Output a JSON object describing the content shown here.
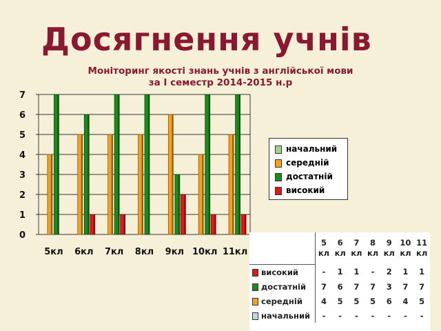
{
  "slide": {
    "title": "Досягнення учнів"
  },
  "chart_data": {
    "type": "bar",
    "title_lines": [
      "Моніторинг якості знань учнів з англійської мови",
      "за І семестр 2014-2015 н.р"
    ],
    "categories": [
      "5кл",
      "6кл",
      "7кл",
      "8кл",
      "9кл",
      "10кл",
      "11кл"
    ],
    "ylim": [
      0,
      7
    ],
    "yticks": [
      0,
      1,
      2,
      3,
      4,
      5,
      6,
      7
    ],
    "grid": true,
    "legend_position": "right",
    "series": [
      {
        "name": "начальний",
        "color": "#9fd48a",
        "values": [
          0,
          0,
          0,
          0,
          0,
          0,
          0
        ]
      },
      {
        "name": "середній",
        "color": "#f5a01e",
        "values": [
          4,
          5,
          5,
          5,
          6,
          4,
          5
        ]
      },
      {
        "name": "достатній",
        "color": "#1e8a1e",
        "values": [
          7,
          6,
          7,
          7,
          3,
          7,
          7
        ]
      },
      {
        "name": "високий",
        "color": "#e01818",
        "values": [
          0,
          1,
          1,
          0,
          2,
          1,
          1
        ]
      }
    ]
  },
  "data_table": {
    "columns": [
      [
        "5",
        "кл"
      ],
      [
        "6",
        "кл"
      ],
      [
        "7",
        "кл"
      ],
      [
        "8",
        "кл"
      ],
      [
        "9",
        "кл"
      ],
      [
        "10",
        "кл"
      ],
      [
        "11",
        "кл"
      ]
    ],
    "rows": [
      {
        "label": "високий",
        "color": "#e01818",
        "cells": [
          "-",
          "1",
          "1",
          "-",
          "2",
          "1",
          "1"
        ]
      },
      {
        "label": "достатній",
        "color": "#1e8a1e",
        "cells": [
          "7",
          "6",
          "7",
          "7",
          "3",
          "7",
          "7"
        ]
      },
      {
        "label": "середній",
        "color": "#f5a01e",
        "cells": [
          "4",
          "5",
          "5",
          "5",
          "6",
          "4",
          "5"
        ]
      },
      {
        "label": "начальний",
        "color": "#b8dce0",
        "cells": [
          "-",
          "-",
          "-",
          "-",
          "-",
          "-",
          "-"
        ]
      }
    ]
  }
}
